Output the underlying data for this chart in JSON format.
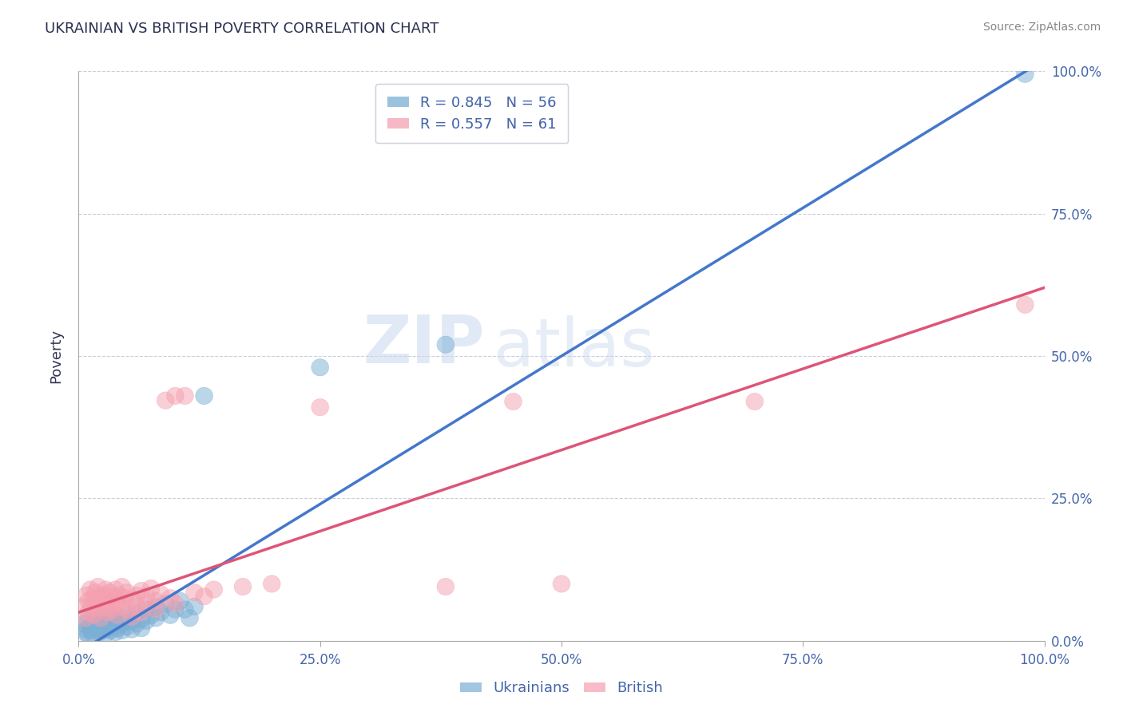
{
  "title": "UKRAINIAN VS BRITISH POVERTY CORRELATION CHART",
  "source": "Source: ZipAtlas.com",
  "ylabel": "Poverty",
  "xlim": [
    0,
    1
  ],
  "ylim": [
    0,
    1
  ],
  "xticks": [
    0,
    0.25,
    0.5,
    0.75,
    1.0
  ],
  "yticks": [
    0.0,
    0.25,
    0.5,
    0.75,
    1.0
  ],
  "xticklabels": [
    "0.0%",
    "25.0%",
    "50.0%",
    "75.0%",
    "100.0%"
  ],
  "yticklabels": [
    "0.0%",
    "25.0%",
    "50.0%",
    "75.0%",
    "100.0%"
  ],
  "ukrainian_color": "#7BAFD4",
  "british_color": "#F4A0B0",
  "ukrainian_line_color": "#4477CC",
  "british_line_color": "#DD5577",
  "R_ukrainian": 0.845,
  "N_ukrainian": 56,
  "R_british": 0.557,
  "N_british": 61,
  "watermark_zip": "ZIP",
  "watermark_atlas": "atlas",
  "title_color": "#2A3050",
  "axis_label_color": "#4466AA",
  "tick_color": "#4466AA",
  "legend_label_ukrainian": "Ukrainians",
  "legend_label_british": "British",
  "grid_color": "#CCCCDD",
  "background_color": "#FFFFFF",
  "ukrainian_points": [
    [
      0.005,
      0.03
    ],
    [
      0.007,
      0.015
    ],
    [
      0.008,
      0.02
    ],
    [
      0.01,
      0.035
    ],
    [
      0.01,
      0.01
    ],
    [
      0.012,
      0.025
    ],
    [
      0.013,
      0.018
    ],
    [
      0.015,
      0.04
    ],
    [
      0.015,
      0.012
    ],
    [
      0.017,
      0.03
    ],
    [
      0.018,
      0.022
    ],
    [
      0.02,
      0.045
    ],
    [
      0.02,
      0.018
    ],
    [
      0.022,
      0.015
    ],
    [
      0.023,
      0.035
    ],
    [
      0.025,
      0.028
    ],
    [
      0.027,
      0.02
    ],
    [
      0.028,
      0.012
    ],
    [
      0.03,
      0.038
    ],
    [
      0.03,
      0.022
    ],
    [
      0.032,
      0.025
    ],
    [
      0.033,
      0.018
    ],
    [
      0.035,
      0.042
    ],
    [
      0.035,
      0.03
    ],
    [
      0.038,
      0.015
    ],
    [
      0.04,
      0.035
    ],
    [
      0.04,
      0.022
    ],
    [
      0.042,
      0.028
    ],
    [
      0.045,
      0.04
    ],
    [
      0.045,
      0.018
    ],
    [
      0.048,
      0.032
    ],
    [
      0.05,
      0.045
    ],
    [
      0.05,
      0.025
    ],
    [
      0.055,
      0.035
    ],
    [
      0.055,
      0.02
    ],
    [
      0.06,
      0.05
    ],
    [
      0.06,
      0.03
    ],
    [
      0.065,
      0.038
    ],
    [
      0.065,
      0.022
    ],
    [
      0.07,
      0.055
    ],
    [
      0.07,
      0.035
    ],
    [
      0.075,
      0.045
    ],
    [
      0.08,
      0.06
    ],
    [
      0.08,
      0.04
    ],
    [
      0.085,
      0.05
    ],
    [
      0.09,
      0.065
    ],
    [
      0.095,
      0.045
    ],
    [
      0.1,
      0.055
    ],
    [
      0.105,
      0.07
    ],
    [
      0.11,
      0.055
    ],
    [
      0.115,
      0.04
    ],
    [
      0.12,
      0.06
    ],
    [
      0.13,
      0.43
    ],
    [
      0.25,
      0.48
    ],
    [
      0.38,
      0.52
    ],
    [
      0.98,
      0.995
    ]
  ],
  "british_points": [
    [
      0.005,
      0.06
    ],
    [
      0.007,
      0.04
    ],
    [
      0.008,
      0.08
    ],
    [
      0.01,
      0.05
    ],
    [
      0.01,
      0.07
    ],
    [
      0.012,
      0.09
    ],
    [
      0.013,
      0.06
    ],
    [
      0.015,
      0.075
    ],
    [
      0.015,
      0.045
    ],
    [
      0.017,
      0.085
    ],
    [
      0.018,
      0.065
    ],
    [
      0.02,
      0.095
    ],
    [
      0.02,
      0.055
    ],
    [
      0.022,
      0.075
    ],
    [
      0.023,
      0.04
    ],
    [
      0.025,
      0.08
    ],
    [
      0.027,
      0.06
    ],
    [
      0.028,
      0.09
    ],
    [
      0.03,
      0.07
    ],
    [
      0.03,
      0.05
    ],
    [
      0.032,
      0.085
    ],
    [
      0.033,
      0.065
    ],
    [
      0.035,
      0.078
    ],
    [
      0.035,
      0.055
    ],
    [
      0.038,
      0.09
    ],
    [
      0.04,
      0.068
    ],
    [
      0.04,
      0.045
    ],
    [
      0.042,
      0.08
    ],
    [
      0.045,
      0.095
    ],
    [
      0.045,
      0.06
    ],
    [
      0.048,
      0.075
    ],
    [
      0.05,
      0.085
    ],
    [
      0.05,
      0.055
    ],
    [
      0.055,
      0.072
    ],
    [
      0.055,
      0.042
    ],
    [
      0.06,
      0.08
    ],
    [
      0.06,
      0.06
    ],
    [
      0.065,
      0.088
    ],
    [
      0.065,
      0.05
    ],
    [
      0.07,
      0.078
    ],
    [
      0.07,
      0.065
    ],
    [
      0.075,
      0.092
    ],
    [
      0.08,
      0.07
    ],
    [
      0.08,
      0.055
    ],
    [
      0.085,
      0.082
    ],
    [
      0.09,
      0.422
    ],
    [
      0.095,
      0.075
    ],
    [
      0.1,
      0.43
    ],
    [
      0.1,
      0.065
    ],
    [
      0.11,
      0.43
    ],
    [
      0.12,
      0.085
    ],
    [
      0.13,
      0.078
    ],
    [
      0.14,
      0.09
    ],
    [
      0.17,
      0.095
    ],
    [
      0.2,
      0.1
    ],
    [
      0.25,
      0.41
    ],
    [
      0.38,
      0.095
    ],
    [
      0.45,
      0.42
    ],
    [
      0.5,
      0.1
    ],
    [
      0.7,
      0.42
    ],
    [
      0.98,
      0.59
    ]
  ],
  "ukr_line": [
    [
      0.0,
      -0.02
    ],
    [
      1.0,
      1.02
    ]
  ],
  "brit_line": [
    [
      0.0,
      0.05
    ],
    [
      1.0,
      0.62
    ]
  ]
}
